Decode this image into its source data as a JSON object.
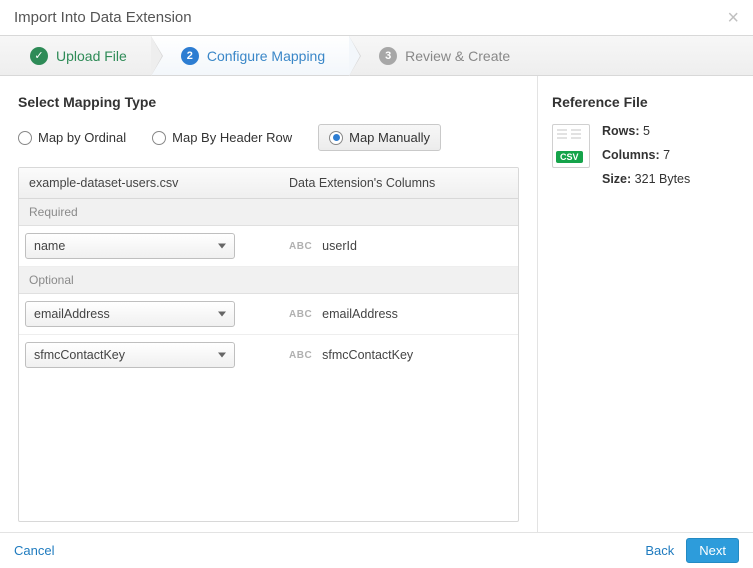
{
  "header": {
    "title": "Import Into Data Extension"
  },
  "wizard": {
    "steps": [
      {
        "label": "Upload File",
        "state": "done"
      },
      {
        "num": "2",
        "label": "Configure Mapping",
        "state": "active"
      },
      {
        "num": "3",
        "label": "Review & Create",
        "state": "pending"
      }
    ]
  },
  "mapping": {
    "section_title": "Select Mapping Type",
    "options": [
      {
        "label": "Map by Ordinal",
        "selected": false
      },
      {
        "label": "Map By Header Row",
        "selected": false
      },
      {
        "label": "Map Manually",
        "selected": true
      }
    ],
    "table": {
      "file_name": "example-dataset-users.csv",
      "de_col_header": "Data Extension's Columns",
      "groups": [
        {
          "label": "Required",
          "rows": [
            {
              "source": "name",
              "target": "userId"
            }
          ]
        },
        {
          "label": "Optional",
          "rows": [
            {
              "source": "emailAddress",
              "target": "emailAddress"
            },
            {
              "source": "sfmcContactKey",
              "target": "sfmcContactKey"
            }
          ]
        }
      ]
    }
  },
  "reference": {
    "title": "Reference File",
    "csv_badge": "CSV",
    "rows_label": "Rows:",
    "rows_value": "5",
    "cols_label": "Columns:",
    "cols_value": "7",
    "size_label": "Size:",
    "size_value": "321 Bytes"
  },
  "footer": {
    "cancel": "Cancel",
    "back": "Back",
    "next": "Next"
  }
}
